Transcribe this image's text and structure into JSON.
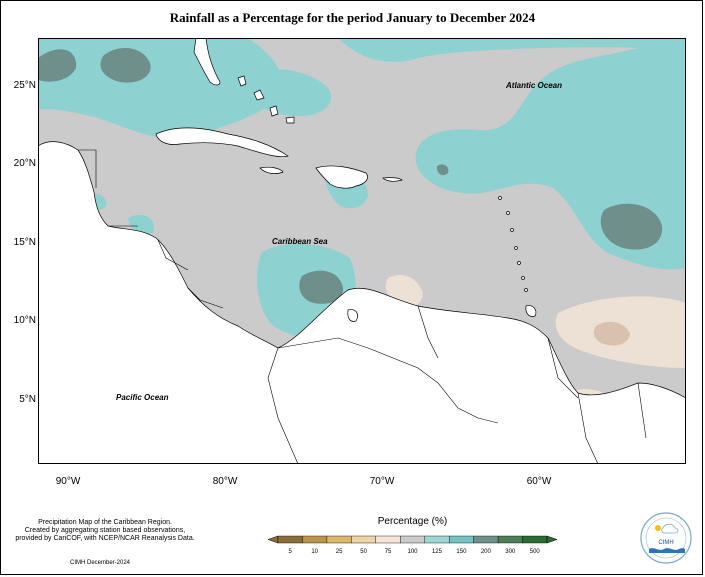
{
  "title": "Rainfall as a Percentage for the period January to December 2024",
  "map": {
    "y_ticks": [
      {
        "label": "25°N",
        "lat": 25
      },
      {
        "label": "20°N",
        "lat": 20
      },
      {
        "label": "15°N",
        "lat": 15
      },
      {
        "label": "10°N",
        "lat": 10
      },
      {
        "label": "5°N",
        "lat": 5
      }
    ],
    "x_ticks": [
      {
        "label": "90°W",
        "lon": -90
      },
      {
        "label": "80°W",
        "lon": -80
      },
      {
        "label": "70°W",
        "lon": -70
      },
      {
        "label": "60°W",
        "lon": -60
      }
    ],
    "labels": {
      "atlantic": "Atlantic Ocean",
      "caribbean": "Caribbean Sea",
      "pacific": "Pacific Ocean"
    },
    "colors": {
      "band_75_100": "#ede0d4",
      "band_100_125": "#cbcbcb",
      "band_125_150": "#8ed1d1",
      "band_150_200": "#6f8f8b",
      "land": "#ffffff",
      "coast": "#000000"
    }
  },
  "legend": {
    "title": "Percentage (%)",
    "ticks": [
      "5",
      "10",
      "25",
      "50",
      "75",
      "100",
      "125",
      "150",
      "200",
      "300",
      "500"
    ],
    "colors": [
      "#8a6d3b",
      "#b8954a",
      "#d8b86a",
      "#ecd5a8",
      "#f3e5d5",
      "#cbcbcb",
      "#9fd6d4",
      "#76c1c1",
      "#6f8f8b",
      "#4f7d56",
      "#2e6b33"
    ]
  },
  "credits": {
    "lines": [
      "Precipitation Map of the Caribbean Region.",
      "Created by aggregating station based observations,",
      "provided by CariCOF, with NCEP/NCAR Reanalysis Data."
    ],
    "date": "CIMH December-2024"
  },
  "logo": {
    "text": "CIMH",
    "icon": "cimh-logo-icon"
  }
}
